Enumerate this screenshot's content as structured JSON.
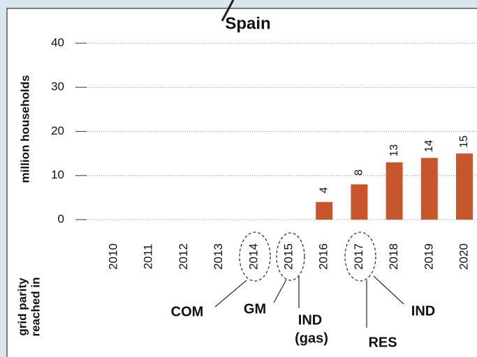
{
  "chart_data": {
    "type": "bar",
    "title": "Spain",
    "y_label": "million households",
    "side_label": [
      "grid parity",
      "reached in"
    ],
    "categories": [
      "2010",
      "2011",
      "2012",
      "2013",
      "2014",
      "2015",
      "2016",
      "2017",
      "2018",
      "2019",
      "2020"
    ],
    "values": [
      null,
      null,
      null,
      null,
      null,
      null,
      4,
      8,
      13,
      14,
      15
    ],
    "color": "#c8562c",
    "ylim": [
      0,
      40
    ],
    "yticks": [
      0,
      10,
      20,
      30,
      40
    ],
    "grid": true,
    "annotations": [
      "COM",
      "GM",
      "IND",
      "(gas)",
      "RES",
      "IND"
    ]
  }
}
